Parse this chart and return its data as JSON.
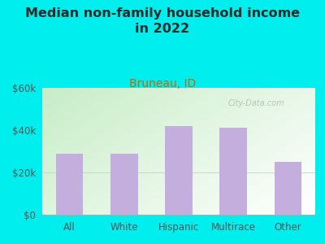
{
  "title": "Median non-family household income\nin 2022",
  "subtitle": "Bruneau, ID",
  "categories": [
    "All",
    "White",
    "Hispanic",
    "Multirace",
    "Other"
  ],
  "values": [
    29000,
    29000,
    42000,
    41000,
    25000
  ],
  "bar_color": "#c4aede",
  "background_color": "#00EEEE",
  "title_color": "#2a2a2a",
  "subtitle_color": "#cc6600",
  "tick_label_color": "#555555",
  "ylim": [
    0,
    60000
  ],
  "yticks": [
    0,
    20000,
    40000,
    60000
  ],
  "ytick_labels": [
    "$0",
    "$20k",
    "$40k",
    "$60k"
  ],
  "grid_color": "#ddbbbb",
  "watermark": "City-Data.com",
  "title_fontsize": 11.5,
  "subtitle_fontsize": 10,
  "tick_fontsize": 8.5,
  "plot_grad_left": "#c8e6c0",
  "plot_grad_right": "#f8fff8"
}
